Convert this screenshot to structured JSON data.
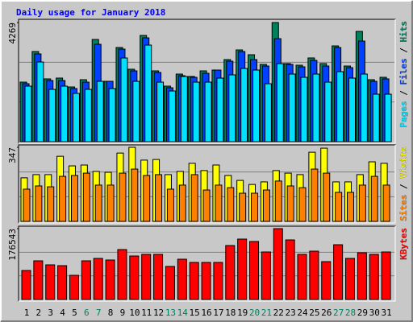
{
  "chart_data": {
    "type": "bar",
    "title": "Daily usage for January 2018",
    "categories": [
      "1",
      "2",
      "3",
      "4",
      "5",
      "6",
      "7",
      "8",
      "9",
      "10",
      "11",
      "12",
      "13",
      "14",
      "15",
      "16",
      "17",
      "18",
      "19",
      "20",
      "21",
      "22",
      "23",
      "24",
      "25",
      "26",
      "27",
      "28",
      "29",
      "30",
      "31"
    ],
    "category_colors": [
      "#000000",
      "#000000",
      "#000000",
      "#000000",
      "#000000",
      "#00805c",
      "#00805c",
      "#000000",
      "#000000",
      "#000000",
      "#000000",
      "#000000",
      "#00805c",
      "#00805c",
      "#000000",
      "#000000",
      "#000000",
      "#000000",
      "#000000",
      "#00805c",
      "#00805c",
      "#000000",
      "#000000",
      "#000000",
      "#000000",
      "#000000",
      "#00805c",
      "#00805c",
      "#000000",
      "#000000",
      "#000000"
    ],
    "legend_separator": " / ",
    "panels": [
      {
        "ylim": [
          0,
          4269
        ],
        "yticks": [
          4269
        ],
        "series": [
          {
            "name": "Hits",
            "color": "#00805c",
            "values": [
              2134,
              3230,
              2250,
              2279,
              1961,
              2221,
              3663,
              2163,
              3375,
              2596,
              3807,
              2538,
              1990,
              2423,
              2336,
              2538,
              2567,
              2942,
              3288,
              3115,
              2769,
              4269,
              2798,
              2740,
              3000,
              2798,
              3432,
              2711,
              3951,
              2221,
              2307
            ]
          },
          {
            "name": "Files",
            "color": "#0040ff",
            "values": [
              2077,
              3144,
              2192,
              2192,
              1904,
              2134,
              3490,
              2163,
              3317,
              2538,
              3720,
              2480,
              1932,
              2365,
              2307,
              2451,
              2567,
              2884,
              3230,
              2942,
              2711,
              3692,
              2769,
              2682,
              2913,
              2711,
              3374,
              2653,
              3605,
              2163,
              2250
            ]
          },
          {
            "name": "Pages",
            "color": "#00e0ff",
            "values": [
              1990,
              2855,
              1875,
              1990,
              1730,
              1875,
              2163,
              1903,
              2999,
              2163,
              3461,
              2134,
              1817,
              2336,
              2134,
              2134,
              2278,
              2394,
              2624,
              2567,
              2077,
              2797,
              2423,
              2307,
              2423,
              2134,
              2509,
              2278,
              2423,
              1702,
              1702
            ]
          }
        ]
      },
      {
        "ylim": [
          0,
          347
        ],
        "yticks": [
          347
        ],
        "series": [
          {
            "name": "Visits",
            "color": "#ffff00",
            "values": [
              204,
              219,
              219,
              305,
              260,
              264,
              234,
              230,
              320,
              347,
              287,
              290,
              219,
              234,
              272,
              238,
              264,
              215,
              192,
              173,
              185,
              238,
              226,
              219,
              324,
              343,
              185,
              185,
              219,
              279,
              272
            ]
          },
          {
            "name": "Sites",
            "color": "#ff8000",
            "values": [
              151,
              166,
              162,
              211,
              215,
              226,
              170,
              170,
              226,
              245,
              215,
              219,
              151,
              170,
              219,
              147,
              170,
              158,
              132,
              132,
              147,
              189,
              166,
              158,
              245,
              226,
              136,
              136,
              170,
              211,
              170
            ]
          }
        ]
      },
      {
        "ylim": [
          0,
          176543
        ],
        "yticks": [
          176543
        ],
        "series": [
          {
            "name": "KBytes",
            "color": "#ff0000",
            "values": [
              72216,
              96288,
              86258,
              84252,
              60180,
              96288,
              102306,
              98294,
              124372,
              108324,
              112336,
              112336,
              82246,
              100300,
              92276,
              92276,
              92276,
              134402,
              150450,
              144432,
              118354,
              176543,
              148444,
              112336,
              120360,
              94282,
              136408,
              102306,
              116348,
              112336,
              118354
            ]
          }
        ]
      }
    ]
  }
}
